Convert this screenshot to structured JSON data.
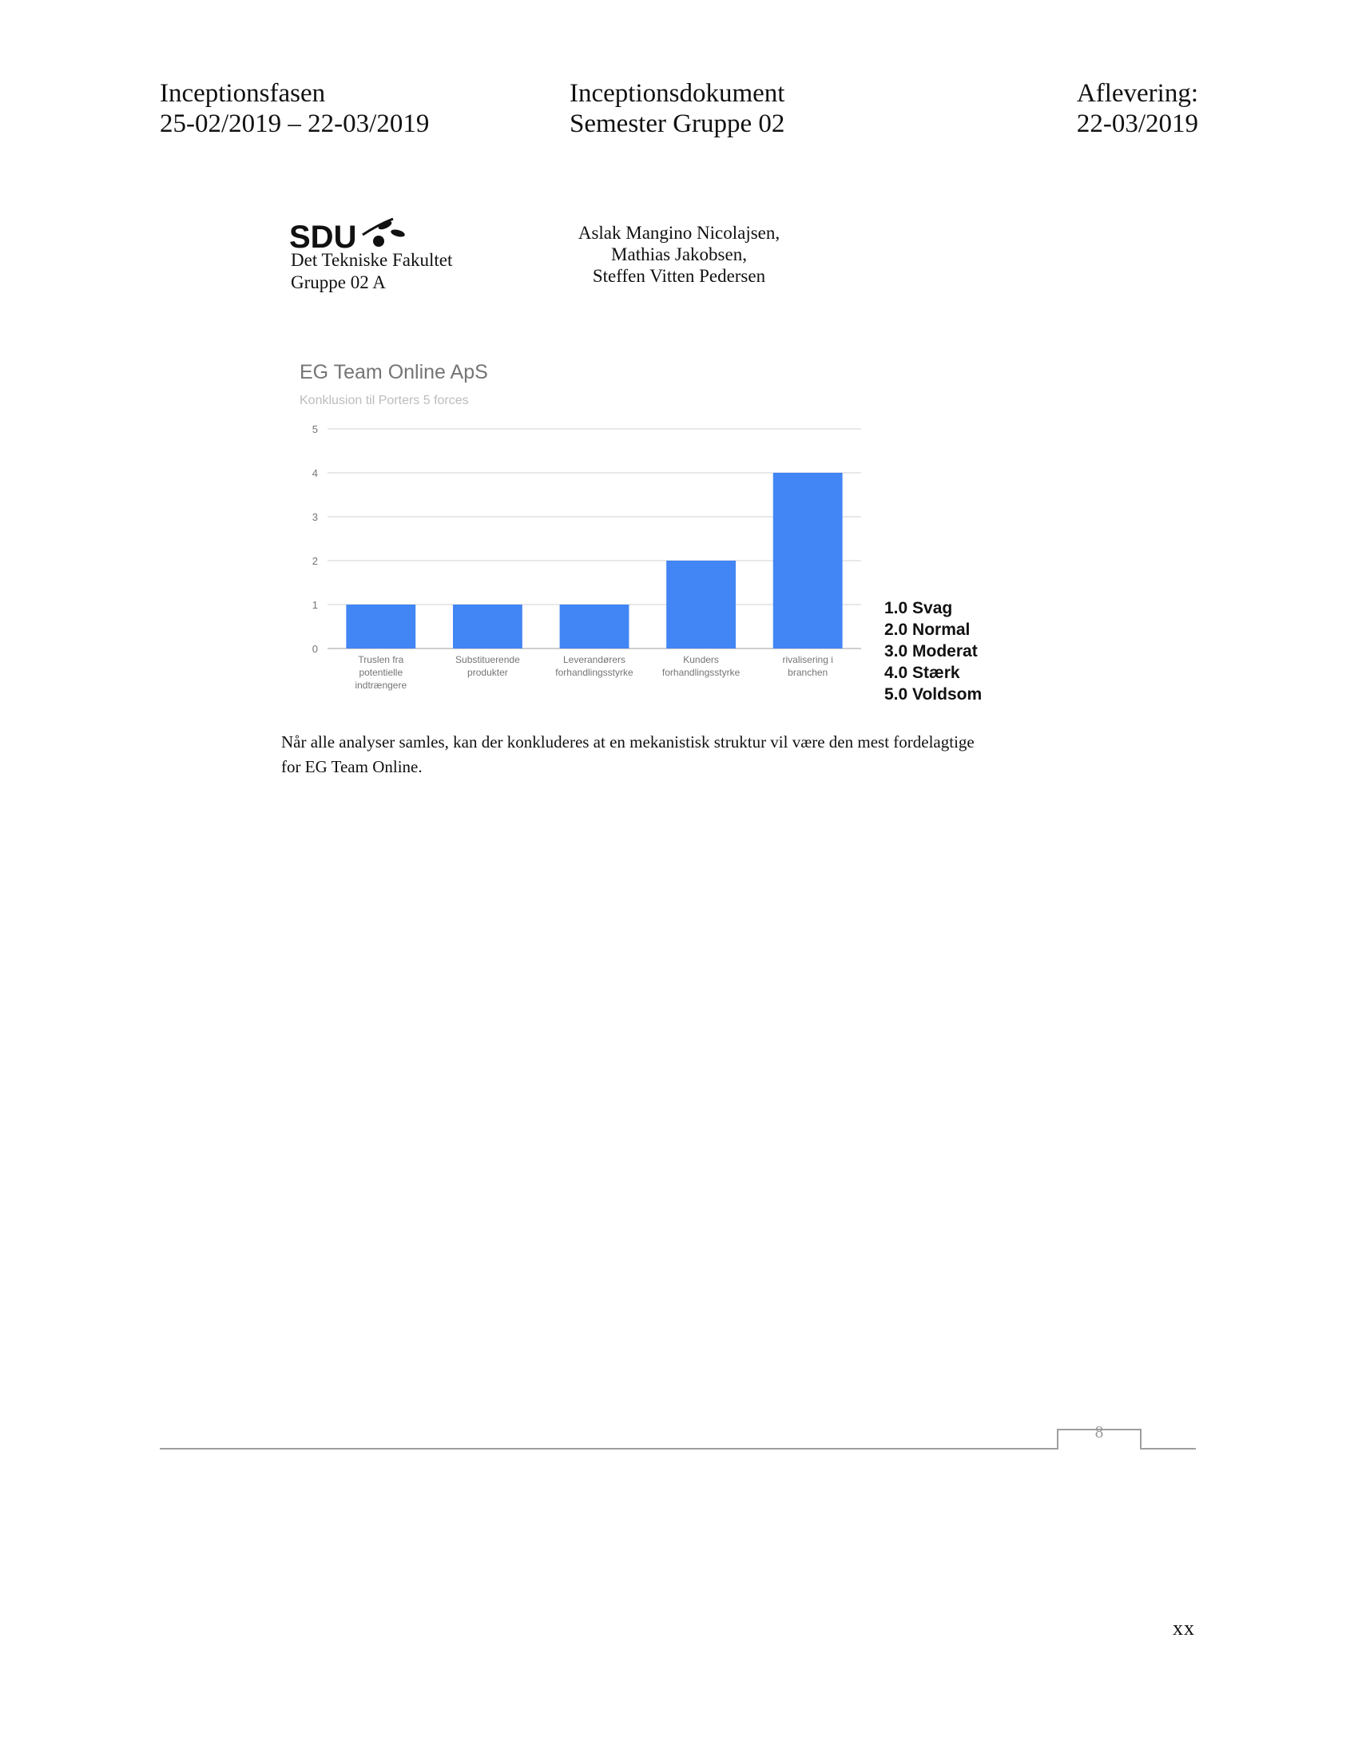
{
  "header": {
    "left_line1": "Inceptionsfasen",
    "left_line2": "25-02/2019 – 22-03/2019",
    "mid_line1": "Inceptionsdokument",
    "mid_line2": "Semester Gruppe 02",
    "right_line1": "Aflevering:",
    "right_line2": "22-03/2019"
  },
  "institution": {
    "logo_text": "SDU",
    "faculty": "Det Tekniske Fakultet",
    "group": "Gruppe 02 A"
  },
  "authors": [
    "Aslak Mangino Nicolajsen,",
    "Mathias Jakobsen,",
    "Steffen Vitten Pedersen"
  ],
  "chart_data": {
    "type": "bar",
    "title": "EG Team Online ApS",
    "subtitle": "Konklusion til Porters 5 forces",
    "categories": [
      [
        "Truslen fra",
        "potentielle",
        "indtrængere"
      ],
      [
        "Substituerende",
        "produkter"
      ],
      [
        "Leverandørers",
        "forhandlingsstyrke"
      ],
      [
        "Kunders",
        "forhandlingsstyrke"
      ],
      [
        "rivalisering i",
        "branchen"
      ]
    ],
    "values": [
      1,
      1,
      1,
      2,
      4
    ],
    "ylim": [
      0,
      5
    ],
    "yticks": [
      "0",
      "1",
      "2",
      "3",
      "4",
      "5"
    ],
    "grid": true,
    "bar_color": "#4285f4",
    "xlabel": "",
    "ylabel": ""
  },
  "legend": [
    "1.0 Svag",
    "2.0 Normal",
    "3.0 Moderat",
    "4.0 Stærk",
    "5.0 Voldsom"
  ],
  "body": {
    "line1": "Når alle analyser samles, kan der konkluderes at en mekanistisk struktur vil være den mest fordelagtige",
    "line2": "for EG Team Online."
  },
  "footer": {
    "page_number": "8",
    "corner_mark": "xx"
  }
}
